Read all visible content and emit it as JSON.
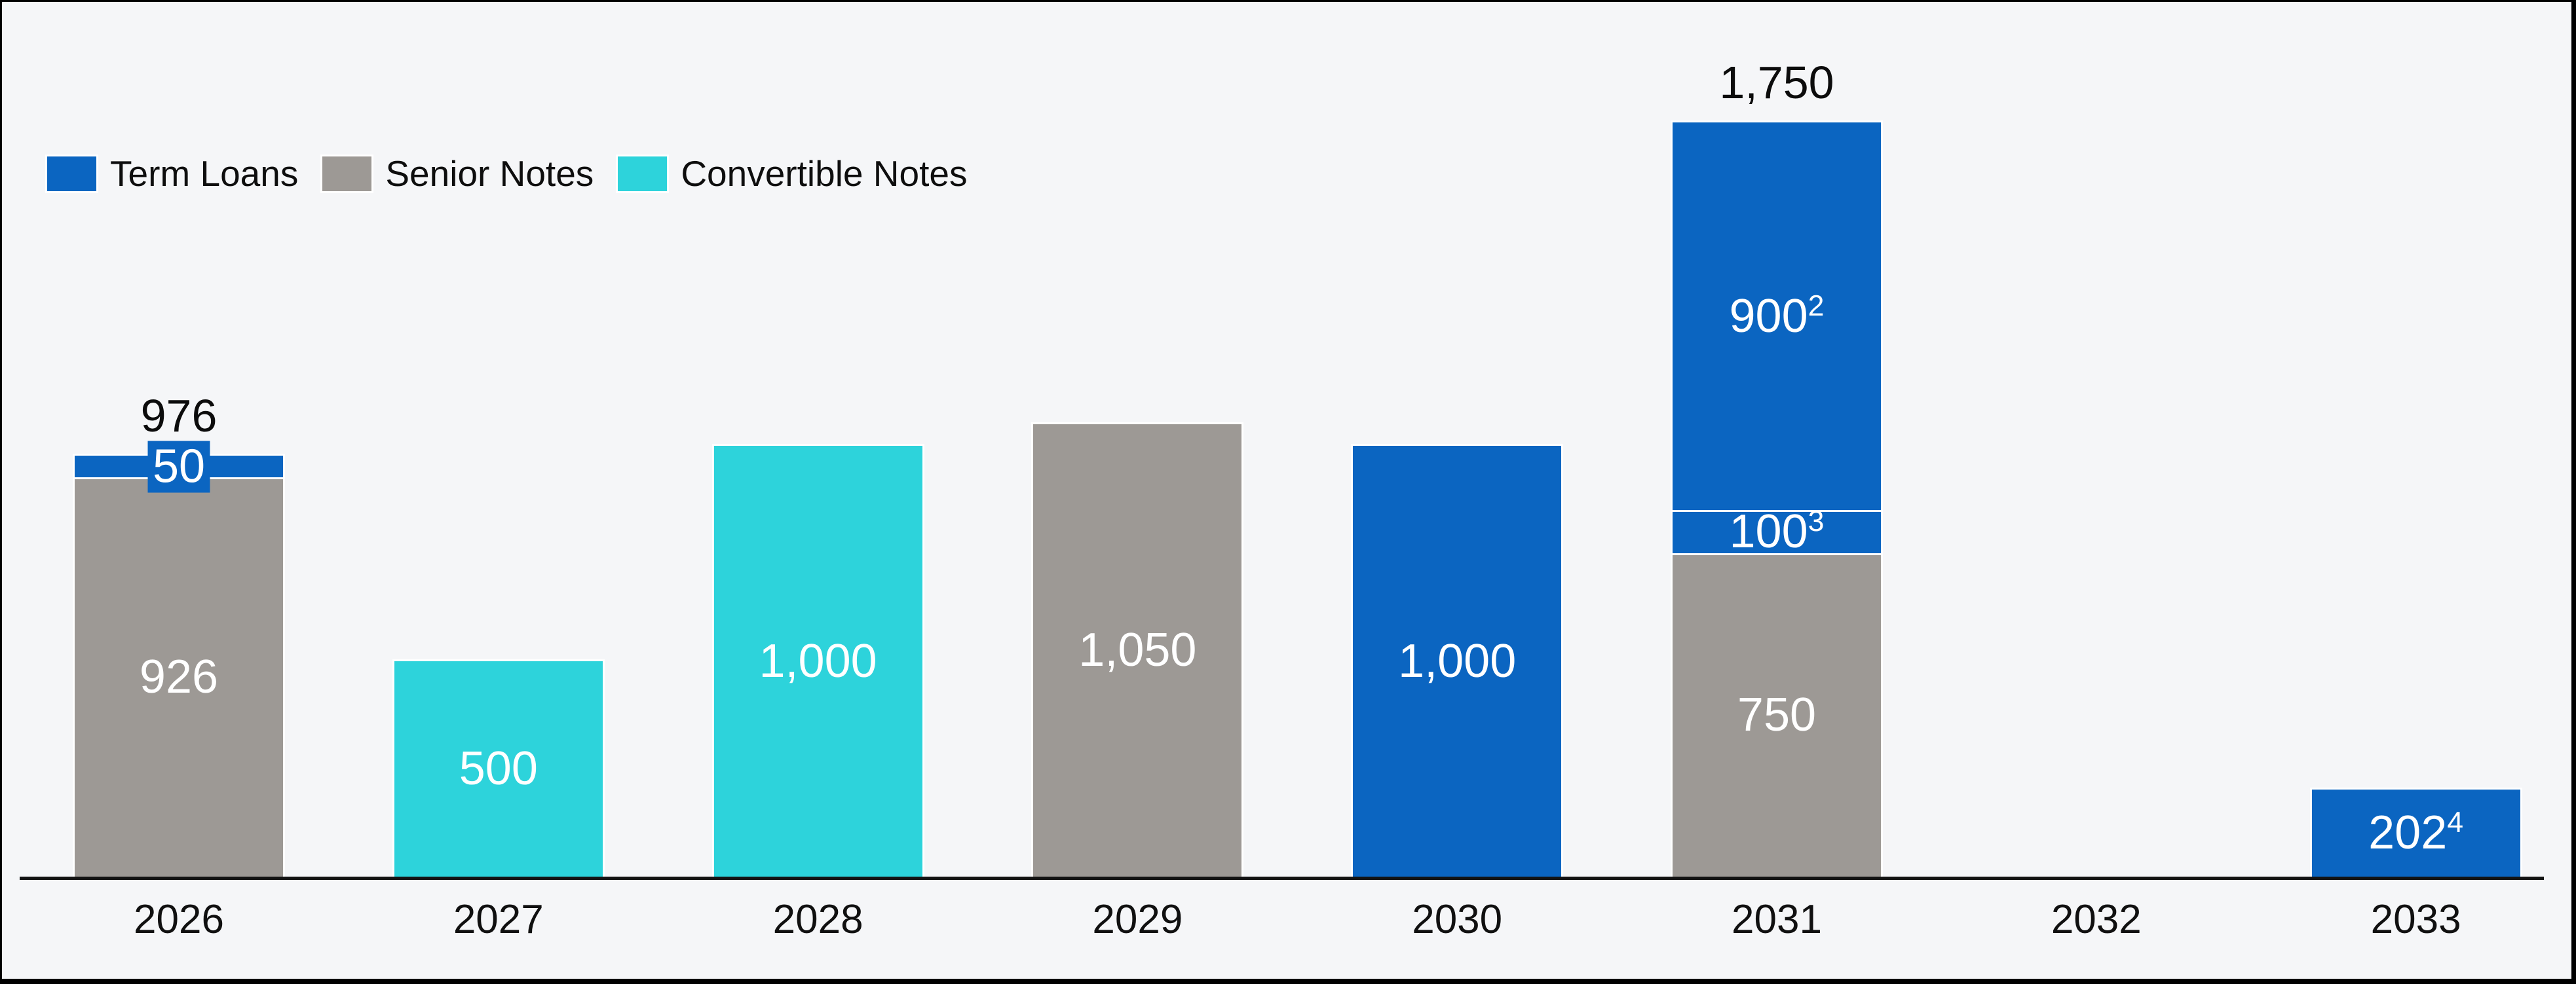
{
  "meta": {
    "background_color": "#f5f6f8",
    "frame_border_color": "#000000",
    "axis_line_color": "#131313"
  },
  "legend": {
    "items": [
      {
        "label": "Term Loans",
        "color": "#0b65c1"
      },
      {
        "label": "Senior Notes",
        "color": "#9d9995"
      },
      {
        "label": "Convertible Notes",
        "color": "#2dd3db"
      }
    ]
  },
  "chart_data": {
    "type": "bar",
    "stacked": true,
    "title": "",
    "xlabel": "",
    "ylabel": "",
    "ylim": [
      0,
      1750
    ],
    "grid": false,
    "legend_position": "top-left",
    "value_axis_visible": false,
    "categories": [
      "2026",
      "2027",
      "2028",
      "2029",
      "2030",
      "2031",
      "2032",
      "2033"
    ],
    "series": [
      {
        "name": "Term Loans",
        "color": "#0b65c1",
        "values": [
          50,
          0,
          0,
          0,
          1000,
          1000,
          0,
          202
        ]
      },
      {
        "name": "Senior Notes",
        "color": "#9d9995",
        "values": [
          926,
          0,
          0,
          1050,
          0,
          750,
          0,
          0
        ]
      },
      {
        "name": "Convertible Notes",
        "color": "#2dd3db",
        "values": [
          0,
          500,
          1000,
          0,
          0,
          0,
          0,
          0
        ]
      }
    ],
    "bars": [
      {
        "category": "2026",
        "total_label": "976",
        "segments": [
          {
            "series": "Senior Notes",
            "value": 926,
            "label": "926"
          },
          {
            "series": "Term Loans",
            "value": 50,
            "label": "50",
            "label_style": "callout"
          }
        ]
      },
      {
        "category": "2027",
        "segments": [
          {
            "series": "Convertible Notes",
            "value": 500,
            "label": "500"
          }
        ]
      },
      {
        "category": "2028",
        "segments": [
          {
            "series": "Convertible Notes",
            "value": 1000,
            "label": "1,000"
          }
        ]
      },
      {
        "category": "2029",
        "segments": [
          {
            "series": "Senior Notes",
            "value": 1050,
            "label": "1,050"
          }
        ]
      },
      {
        "category": "2030",
        "segments": [
          {
            "series": "Term Loans",
            "value": 1000,
            "label": "1,000"
          }
        ]
      },
      {
        "category": "2031",
        "total_label": "1,750",
        "segments": [
          {
            "series": "Senior Notes",
            "value": 750,
            "label": "750"
          },
          {
            "series": "Term Loans",
            "value": 100,
            "label": "100",
            "label_sup": "3"
          },
          {
            "series": "Term Loans",
            "value": 900,
            "label": "900",
            "label_sup": "2"
          }
        ]
      },
      {
        "category": "2032",
        "segments": []
      },
      {
        "category": "2033",
        "segments": [
          {
            "series": "Term Loans",
            "value": 202,
            "label": "202",
            "label_sup": "4"
          }
        ]
      }
    ]
  }
}
